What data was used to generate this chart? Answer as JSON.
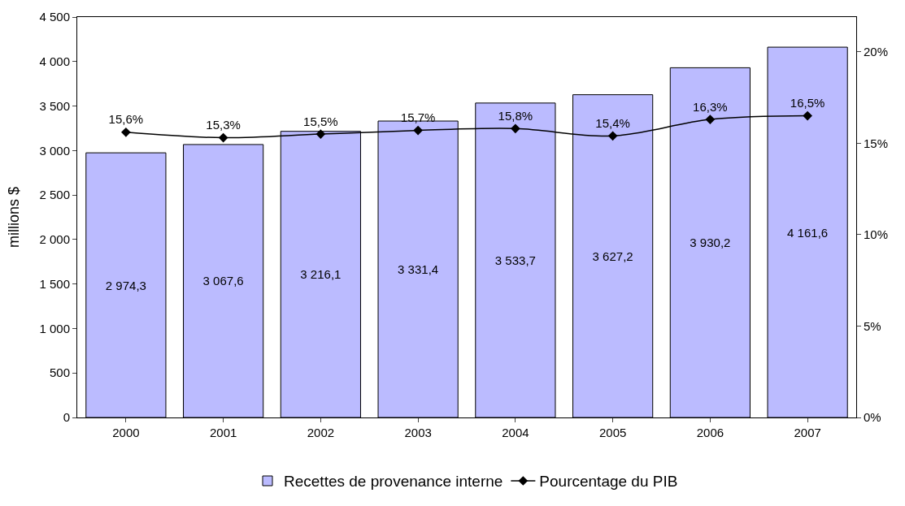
{
  "chart_data": {
    "type": "bar",
    "categories": [
      "2000",
      "2001",
      "2002",
      "2003",
      "2004",
      "2005",
      "2006",
      "2007"
    ],
    "ylabel": "millions $",
    "ylim": [
      0,
      4500
    ],
    "yticks": [
      {
        "value": 0,
        "label": "0"
      },
      {
        "value": 500,
        "label": "500"
      },
      {
        "value": 1000,
        "label": "1 000"
      },
      {
        "value": 1500,
        "label": "1 500"
      },
      {
        "value": 2000,
        "label": "2 000"
      },
      {
        "value": 2500,
        "label": "2 500"
      },
      {
        "value": 3000,
        "label": "3 000"
      },
      {
        "value": 3500,
        "label": "3 500"
      },
      {
        "value": 4000,
        "label": "4 000"
      },
      {
        "value": 4500,
        "label": "4 500"
      }
    ],
    "y2lim": [
      0,
      21.9
    ],
    "y2ticks": [
      {
        "value": 0,
        "label": "0%"
      },
      {
        "value": 5,
        "label": "5%"
      },
      {
        "value": 10,
        "label": "10%"
      },
      {
        "value": 15,
        "label": "15%"
      },
      {
        "value": 20,
        "label": "20%"
      }
    ],
    "legend": "bottom",
    "series": [
      {
        "name": "Recettes de provenance interne",
        "color": "#bbbbff",
        "values": [
          2974.3,
          3067.6,
          3216.1,
          3331.4,
          3533.7,
          3627.2,
          3930.2,
          4161.6
        ],
        "value_labels": [
          "2 974,3",
          "3 067,6",
          "3 216,1",
          "3 331,4",
          "3 533,7",
          "3 627,2",
          "3 930,2",
          "4 161,6"
        ]
      },
      {
        "name": "Pourcentage du PIB",
        "type": "line",
        "axis": "y2",
        "color": "#000000",
        "marker": "diamond",
        "values": [
          15.6,
          15.3,
          15.5,
          15.7,
          15.8,
          15.4,
          16.3,
          16.5
        ],
        "value_labels": [
          "15,6%",
          "15,3%",
          "15,5%",
          "15,7%",
          "15,8%",
          "15,4%",
          "16,3%",
          "16,5%"
        ]
      }
    ]
  }
}
